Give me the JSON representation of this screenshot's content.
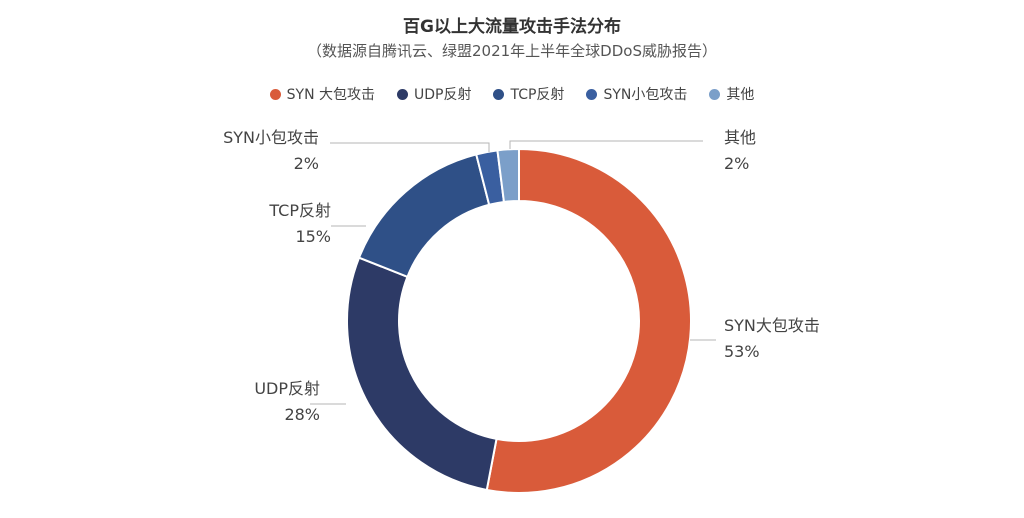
{
  "chart_data": {
    "type": "pie",
    "title": "百G以上大流量攻击手法分布",
    "subtitle": "（数据源自腾讯云、绿盟2021年上半年全球DDoS威胁报告）",
    "donut": true,
    "categories": [
      "SYN大包攻击",
      "UDP反射",
      "TCP反射",
      "SYN小包攻击",
      "其他"
    ],
    "values": [
      53,
      28,
      15,
      2,
      2
    ],
    "value_labels": [
      "53%",
      "28%",
      "15%",
      "2%",
      "2%"
    ],
    "legend_labels": [
      "SYN 大包攻击",
      "UDP反射",
      "TCP反射",
      "SYN小包攻击",
      "其他"
    ],
    "legend_position": "top",
    "colors": [
      "#d95b3a",
      "#2d3a66",
      "#2f5087",
      "#3a5fa0",
      "#7b9fc9"
    ]
  }
}
